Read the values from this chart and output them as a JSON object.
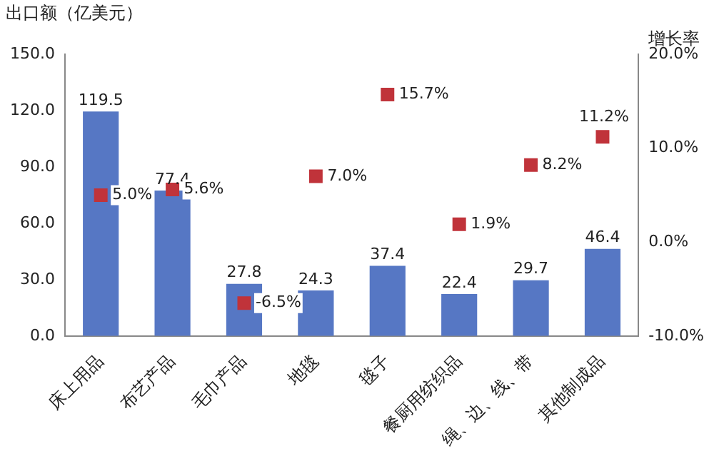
{
  "chart_data": {
    "type": "bar",
    "ylabel": "出口额（亿美元）",
    "y2label": "增长率",
    "categories": [
      "床上用品",
      "布艺产品",
      "毛巾产品",
      "地毯",
      "毯子",
      "餐厨用纺织品",
      "绳、边、线、带",
      "其他制成品"
    ],
    "series": [
      {
        "color": "#5677c4",
        "values": [
          119.5,
          77.4,
          27.8,
          24.3,
          37.4,
          22.4,
          29.7,
          46.4
        ],
        "value_labels": [
          "119.5",
          "77.4",
          "27.8",
          "24.3",
          "37.4",
          "22.4",
          "29.7",
          "46.4"
        ]
      },
      {
        "type": "scatter",
        "axis": "y2",
        "color": "#c0333a",
        "x": [
          "床上用品",
          "布艺产品",
          "毛巾产品",
          "地毯",
          "毯子",
          "餐厨用纺织品",
          "绳、边、线、带",
          "其他制成品"
        ],
        "values": [
          5.0,
          5.6,
          -6.5,
          7.0,
          15.7,
          1.9,
          8.2,
          11.2
        ],
        "value_labels": [
          "5.0%",
          "5.6%",
          "-6.5%",
          "7.0%",
          "15.7%",
          "1.9%",
          "8.2%",
          "11.2%"
        ]
      }
    ],
    "ylim": [
      0,
      150
    ],
    "yticks": [
      {
        "value": 0,
        "label": "0.0"
      },
      {
        "value": 30,
        "label": "30.0"
      },
      {
        "value": 60,
        "label": "60.0"
      },
      {
        "value": 90,
        "label": "90.0"
      },
      {
        "value": 120,
        "label": "120.0"
      },
      {
        "value": 150,
        "label": "150.0"
      }
    ],
    "y2lim": [
      -10,
      20
    ],
    "y2ticks": [
      {
        "value": -10,
        "label": "-10.0%"
      },
      {
        "value": 0,
        "label": "0.0%"
      },
      {
        "value": 10,
        "label": "10.0%"
      },
      {
        "value": 20,
        "label": "20.0%"
      }
    ],
    "marker": "square",
    "grid": false,
    "legend": false
  }
}
